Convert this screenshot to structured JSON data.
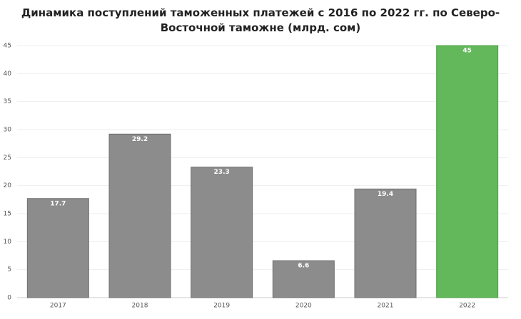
{
  "chart_data": {
    "type": "bar",
    "title": "Динамика поступлений таможенных платежей с 2016 по 2022 гг. по Северо-Восточной таможне (млрд. сом)",
    "categories": [
      "2017",
      "2018",
      "2019",
      "2020",
      "2021",
      "2022"
    ],
    "values": [
      17.7,
      29.2,
      23.3,
      6.6,
      19.4,
      45
    ],
    "colors": [
      "#8c8c8c",
      "#8c8c8c",
      "#8c8c8c",
      "#8c8c8c",
      "#8c8c8c",
      "#62b85a"
    ],
    "ylim": [
      0,
      45
    ],
    "yticks": [
      0,
      5,
      10,
      15,
      20,
      25,
      30,
      35,
      40,
      45
    ],
    "grid": true
  }
}
